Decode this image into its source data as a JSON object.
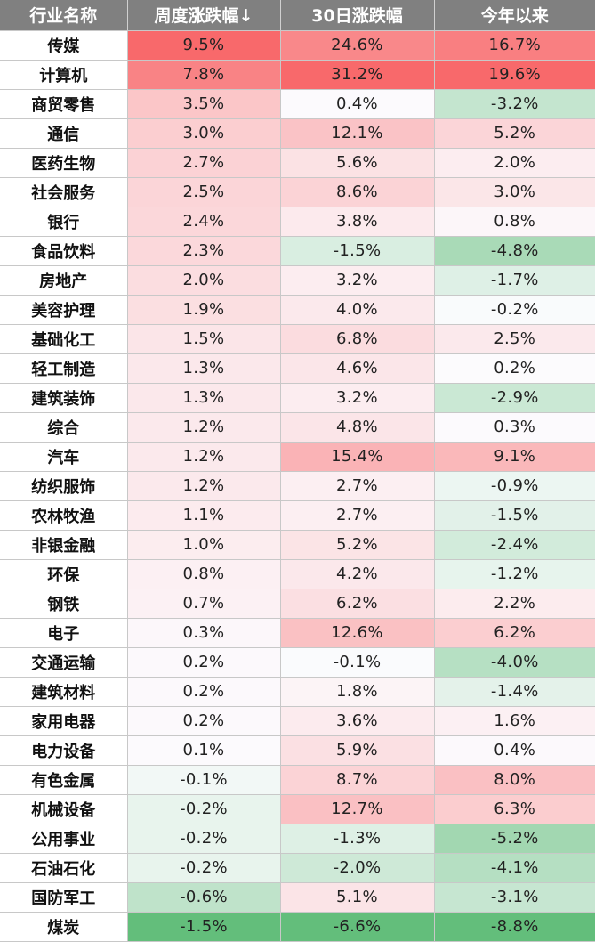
{
  "chart_data": {
    "type": "table",
    "columns": [
      "行业名称",
      "周度涨跌幅↓",
      "30日涨跌幅",
      "今年以来"
    ],
    "rows": [
      {
        "name": "传媒",
        "values": [
          "9.5%",
          "24.6%",
          "16.7%"
        ]
      },
      {
        "name": "计算机",
        "values": [
          "7.8%",
          "31.2%",
          "19.6%"
        ]
      },
      {
        "name": "商贸零售",
        "values": [
          "3.5%",
          "0.4%",
          "-3.2%"
        ]
      },
      {
        "name": "通信",
        "values": [
          "3.0%",
          "12.1%",
          "5.2%"
        ]
      },
      {
        "name": "医药生物",
        "values": [
          "2.7%",
          "5.6%",
          "2.0%"
        ]
      },
      {
        "name": "社会服务",
        "values": [
          "2.5%",
          "8.6%",
          "3.0%"
        ]
      },
      {
        "name": "银行",
        "values": [
          "2.4%",
          "3.8%",
          "0.8%"
        ]
      },
      {
        "name": "食品饮料",
        "values": [
          "2.3%",
          "-1.5%",
          "-4.8%"
        ]
      },
      {
        "name": "房地产",
        "values": [
          "2.0%",
          "3.2%",
          "-1.7%"
        ]
      },
      {
        "name": "美容护理",
        "values": [
          "1.9%",
          "4.0%",
          "-0.2%"
        ]
      },
      {
        "name": "基础化工",
        "values": [
          "1.5%",
          "6.8%",
          "2.5%"
        ]
      },
      {
        "name": "轻工制造",
        "values": [
          "1.3%",
          "4.6%",
          "0.2%"
        ]
      },
      {
        "name": "建筑装饰",
        "values": [
          "1.3%",
          "3.2%",
          "-2.9%"
        ]
      },
      {
        "name": "综合",
        "values": [
          "1.2%",
          "4.8%",
          "0.3%"
        ]
      },
      {
        "name": "汽车",
        "values": [
          "1.2%",
          "15.4%",
          "9.1%"
        ]
      },
      {
        "name": "纺织服饰",
        "values": [
          "1.2%",
          "2.7%",
          "-0.9%"
        ]
      },
      {
        "name": "农林牧渔",
        "values": [
          "1.1%",
          "2.7%",
          "-1.5%"
        ]
      },
      {
        "name": "非银金融",
        "values": [
          "1.0%",
          "5.2%",
          "-2.4%"
        ]
      },
      {
        "name": "环保",
        "values": [
          "0.8%",
          "4.2%",
          "-1.2%"
        ]
      },
      {
        "name": "钢铁",
        "values": [
          "0.7%",
          "6.2%",
          "2.2%"
        ]
      },
      {
        "name": "电子",
        "values": [
          "0.3%",
          "12.6%",
          "6.2%"
        ]
      },
      {
        "name": "交通运输",
        "values": [
          "0.2%",
          "-0.1%",
          "-4.0%"
        ]
      },
      {
        "name": "建筑材料",
        "values": [
          "0.2%",
          "1.8%",
          "-1.4%"
        ]
      },
      {
        "name": "家用电器",
        "values": [
          "0.2%",
          "3.6%",
          "1.6%"
        ]
      },
      {
        "name": "电力设备",
        "values": [
          "0.1%",
          "5.9%",
          "0.4%"
        ]
      },
      {
        "name": "有色金属",
        "values": [
          "-0.1%",
          "8.7%",
          "8.0%"
        ]
      },
      {
        "name": "机械设备",
        "values": [
          "-0.2%",
          "12.7%",
          "6.3%"
        ]
      },
      {
        "name": "公用事业",
        "values": [
          "-0.2%",
          "-1.3%",
          "-5.2%"
        ]
      },
      {
        "name": "石油石化",
        "values": [
          "-0.2%",
          "-2.0%",
          "-4.1%"
        ]
      },
      {
        "name": "国防军工",
        "values": [
          "-0.6%",
          "5.1%",
          "-3.1%"
        ]
      },
      {
        "name": "煤炭",
        "values": [
          "-1.5%",
          "-6.6%",
          "-8.8%"
        ]
      }
    ],
    "colors": {
      "header_bg": "#808080",
      "header_text": "#ffffff",
      "positive_max": "#f8696b",
      "neutral": "#fcfcff",
      "negative_max": "#63be7b"
    }
  }
}
